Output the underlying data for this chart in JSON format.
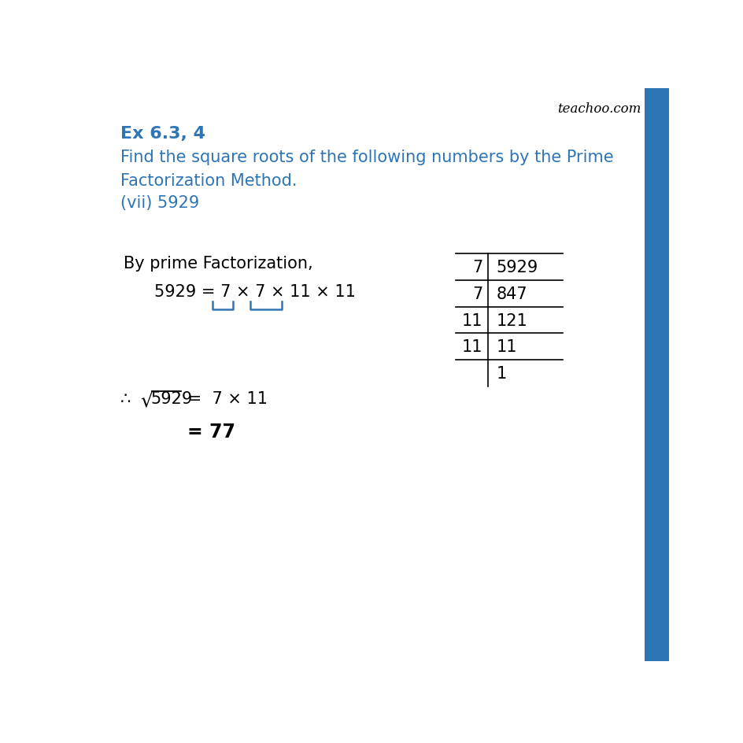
{
  "title": "Ex 6.3, 4",
  "subtitle_line1": "Find the square roots of the following numbers by the Prime",
  "subtitle_line2": "Factorization Method.",
  "subpart": "(vii) 5929",
  "by_prime_text": "By prime Factorization,",
  "watermark": "teachoo.com",
  "blue_color": "#2E75B6",
  "black": "#000000",
  "table_data": [
    [
      "7",
      "5929"
    ],
    [
      "7",
      "847"
    ],
    [
      "11",
      "121"
    ],
    [
      "11",
      "11"
    ],
    [
      "",
      "1"
    ]
  ],
  "bg_color": "#FFFFFF",
  "sidebar_color": "#2E75B6",
  "title_fontsize": 14,
  "body_fontsize": 15,
  "watermark_fontsize": 12
}
